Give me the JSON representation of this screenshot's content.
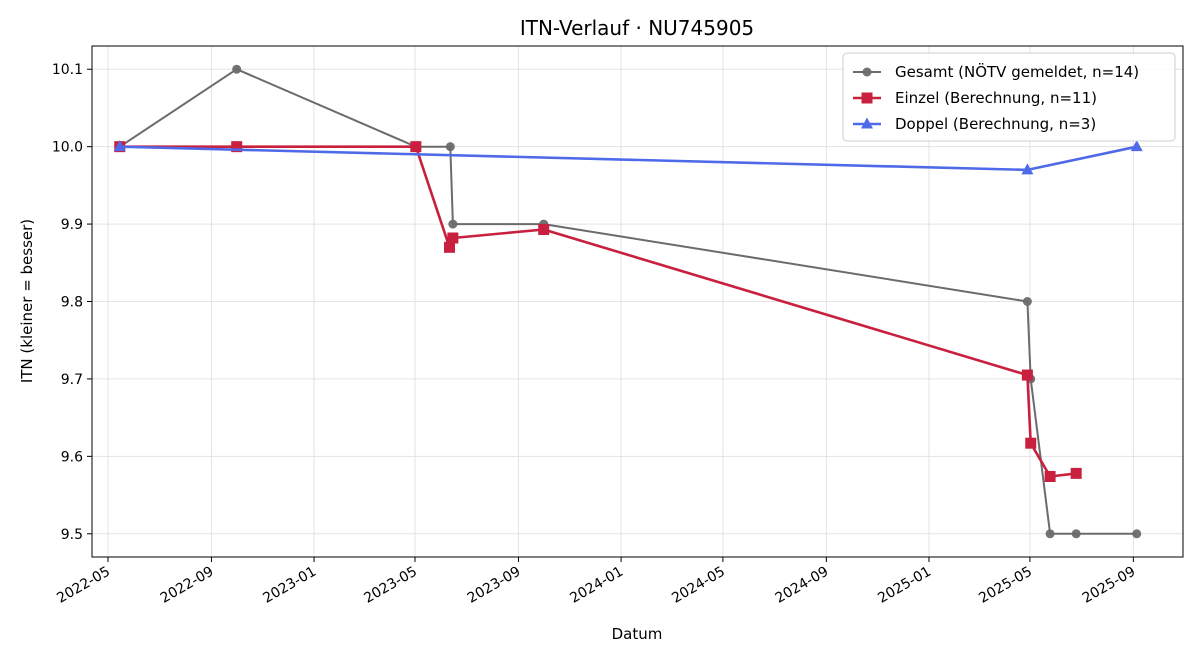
{
  "chart_data": {
    "type": "line",
    "title": "ITN-Verlauf · NU745905",
    "xlabel": "Datum",
    "ylabel": "ITN  (kleiner = besser)",
    "ylim": [
      9.47,
      10.13
    ],
    "yticks": [
      9.5,
      9.6,
      9.7,
      9.8,
      9.9,
      10.0,
      10.1
    ],
    "yticklabels": [
      "9.5",
      "9.6",
      "9.7",
      "9.8",
      "9.9",
      "10.0",
      "10.1"
    ],
    "xlim": [
      "2022-04-12",
      "2025-10-30"
    ],
    "xticks": [
      "2022-05-01",
      "2022-09-01",
      "2023-01-01",
      "2023-05-01",
      "2023-09-01",
      "2024-01-01",
      "2024-05-01",
      "2024-09-01",
      "2025-01-01",
      "2025-05-01",
      "2025-09-01"
    ],
    "xticklabels": [
      "2022-05",
      "2022-09",
      "2023-01",
      "2023-05",
      "2023-09",
      "2024-01",
      "2024-05",
      "2024-09",
      "2025-01",
      "2025-05",
      "2025-09"
    ],
    "grid": true,
    "legend_position": "top-right",
    "series": [
      {
        "name": "Gesamt (NÖTV gemeldet, n=14)",
        "color": "#6b6b6b",
        "marker": "circle",
        "points": [
          {
            "x": "2022-05-15",
            "y": 10.0
          },
          {
            "x": "2022-10-01",
            "y": 10.1
          },
          {
            "x": "2023-05-02",
            "y": 10.0
          },
          {
            "x": "2023-06-12",
            "y": 10.0
          },
          {
            "x": "2023-06-15",
            "y": 9.9
          },
          {
            "x": "2023-10-01",
            "y": 9.9
          },
          {
            "x": "2025-04-28",
            "y": 9.8
          },
          {
            "x": "2025-05-02",
            "y": 9.7
          },
          {
            "x": "2025-05-25",
            "y": 9.5
          },
          {
            "x": "2025-06-25",
            "y": 9.5
          },
          {
            "x": "2025-09-05",
            "y": 9.5
          }
        ]
      },
      {
        "name": "Einzel (Berechnung, n=11)",
        "color": "#c8203e",
        "marker": "square",
        "points": [
          {
            "x": "2022-05-15",
            "y": 10.0
          },
          {
            "x": "2022-10-01",
            "y": 10.0
          },
          {
            "x": "2023-05-02",
            "y": 10.0
          },
          {
            "x": "2023-06-11",
            "y": 9.87
          },
          {
            "x": "2023-06-15",
            "y": 9.882
          },
          {
            "x": "2023-10-01",
            "y": 9.893
          },
          {
            "x": "2025-04-28",
            "y": 9.705
          },
          {
            "x": "2025-05-02",
            "y": 9.617
          },
          {
            "x": "2025-05-25",
            "y": 9.574
          },
          {
            "x": "2025-06-25",
            "y": 9.578
          }
        ]
      },
      {
        "name": "Doppel (Berechnung, n=3)",
        "color": "#4f6ae8",
        "marker": "triangle",
        "points": [
          {
            "x": "2022-05-15",
            "y": 10.0
          },
          {
            "x": "2025-04-28",
            "y": 9.97
          },
          {
            "x": "2025-09-05",
            "y": 10.0
          }
        ]
      }
    ]
  }
}
